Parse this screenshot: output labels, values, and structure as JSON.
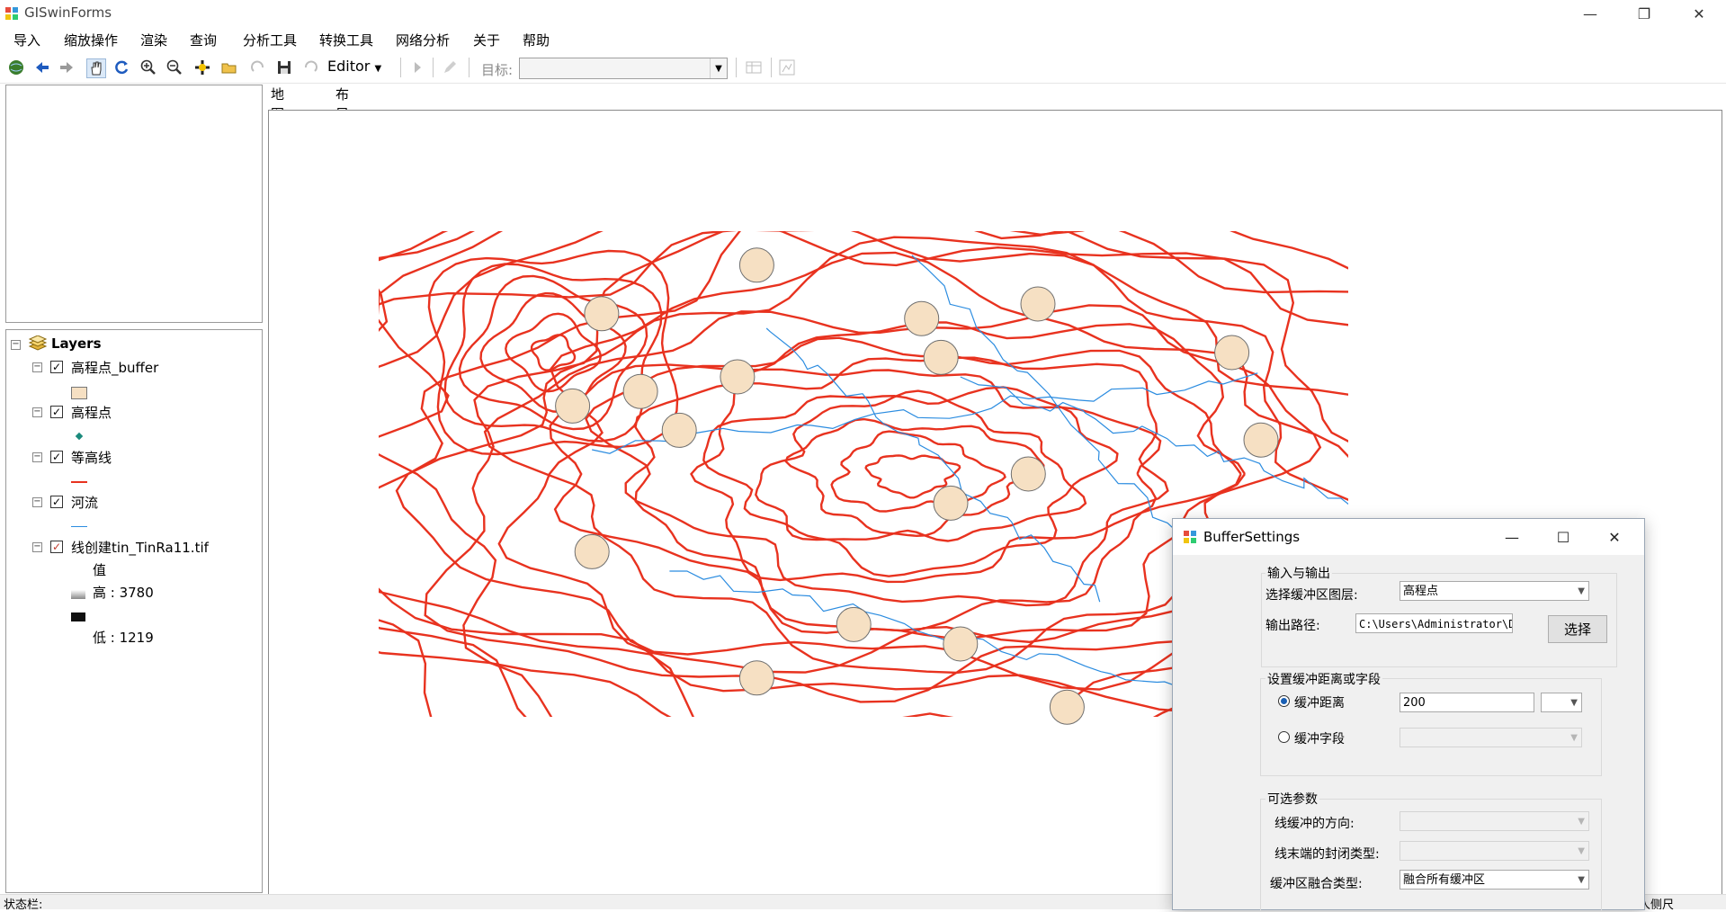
{
  "window": {
    "title": "GISwinForms",
    "minimize": "—",
    "restore": "❐",
    "close": "✕"
  },
  "menu": [
    "导入",
    "缩放操作",
    "渲染",
    "查询",
    "分析工具",
    "转换工具",
    "网络分析",
    "关于",
    "帮助"
  ],
  "toolbar": {
    "editor_label": "Editor",
    "target_label": "目标:",
    "target_value": ""
  },
  "tabs": [
    "地图视图",
    "布局视图"
  ],
  "toc": {
    "root": "Layers",
    "layers": [
      {
        "name": "高程点_buffer",
        "checked": true
      },
      {
        "name": "高程点",
        "checked": true
      },
      {
        "name": "等高线",
        "checked": true
      },
      {
        "name": "河流",
        "checked": true
      },
      {
        "name": "线创建tin_TinRa11.tif",
        "checked": true
      }
    ],
    "raster_value_label": "值",
    "raster_high": "高 : 3780",
    "raster_low": "低 : 1219"
  },
  "status": {
    "text": "状态栏:",
    "right_text": "人侧尺"
  },
  "colors": {
    "contour": "#e8321f",
    "river": "#2b8ce0",
    "buffer_fill": "#f6e0c3",
    "buffer_stroke": "#6f6f6f",
    "point_fill": "#1a8a7c"
  },
  "dialog": {
    "title": "BufferSettings",
    "minimize": "—",
    "maximize": "☐",
    "close": "✕",
    "group_io": "输入与输出",
    "layer_label": "选择缓冲区图层:",
    "layer_value": "高程点",
    "output_label": "输出路径:",
    "output_value": "C:\\Users\\Administrator\\Desk",
    "select_button": "选择",
    "group_dist": "设置缓冲距离或字段",
    "radio_distance": "缓冲距离",
    "distance_value": "200",
    "unit_value": "",
    "radio_field": "缓冲字段",
    "field_value": "",
    "group_opt": "可选参数",
    "side_label": "线缓冲的方向:",
    "side_value": "",
    "endtype_label": "线末端的封闭类型:",
    "endtype_value": "",
    "dissolve_label": "缓冲区融合类型:",
    "dissolve_value": "融合所有缓冲区"
  }
}
